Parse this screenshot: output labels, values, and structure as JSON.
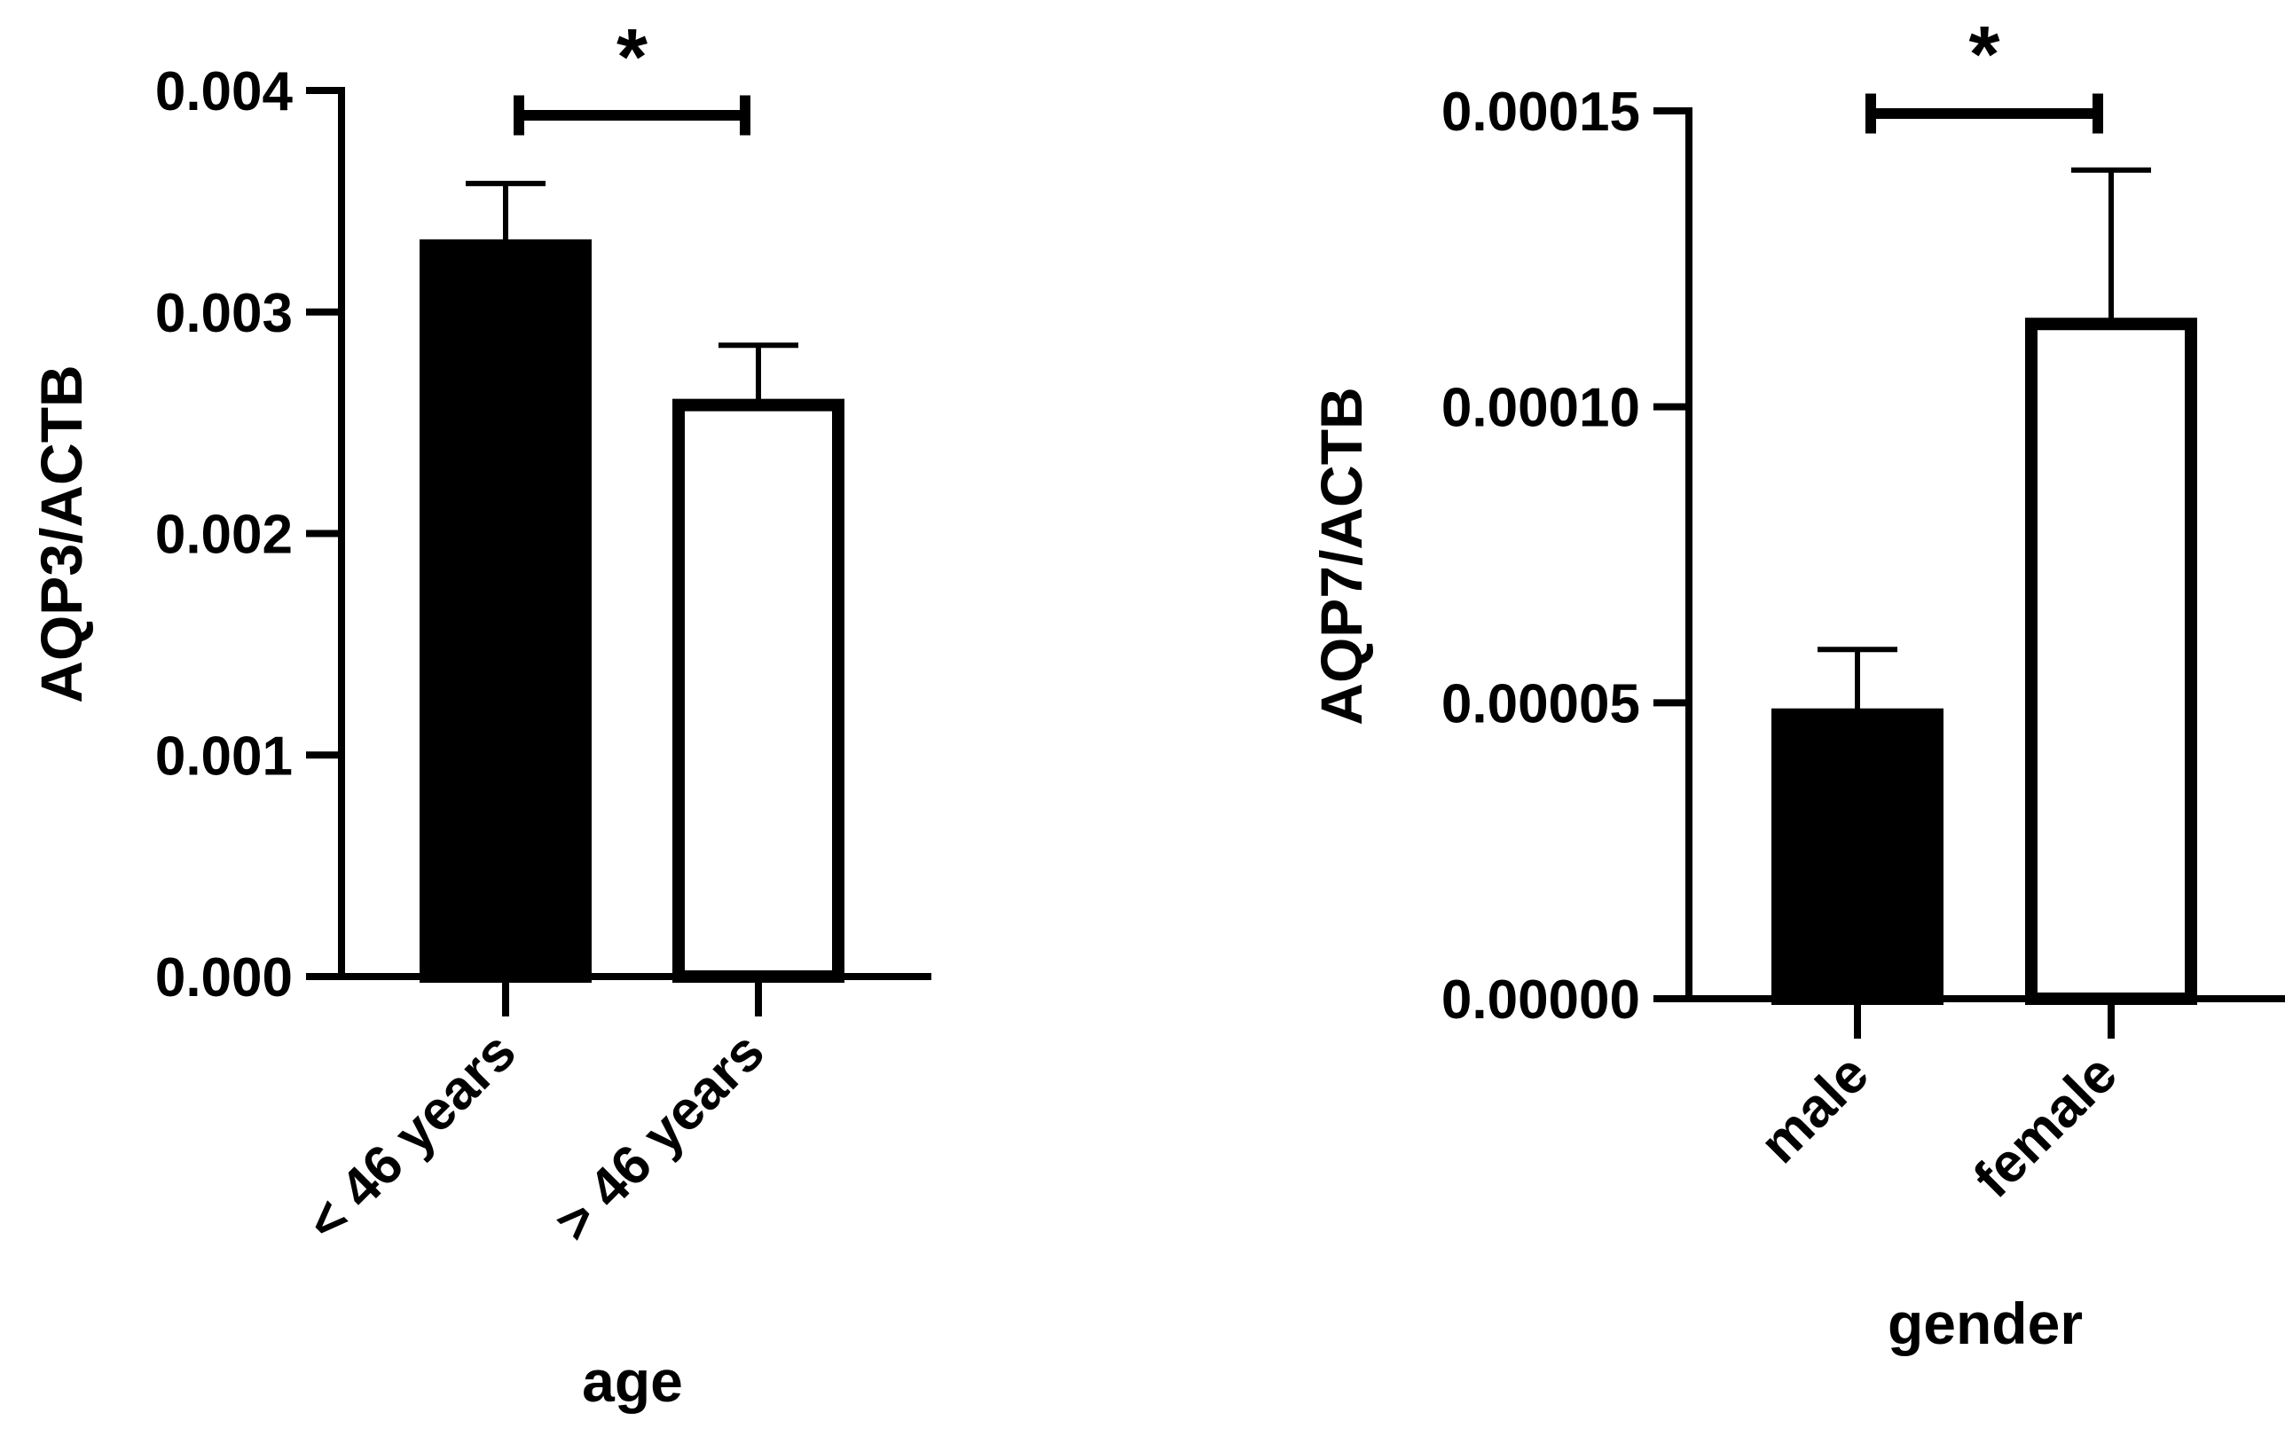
{
  "chart_data": [
    {
      "type": "bar",
      "title": "",
      "xlabel": "age",
      "ylabel": "AQP3/ACTB",
      "categories": [
        "< 46 years",
        "> 46 years"
      ],
      "values": [
        0.0033,
        0.00258
      ],
      "errors": [
        0.00028,
        0.00027
      ],
      "fills": [
        "#000000",
        "#ffffff"
      ],
      "ylim": [
        0,
        0.004
      ],
      "yticks": [
        0,
        0.001,
        0.002,
        0.003,
        0.004
      ],
      "ytick_labels": [
        "0.000",
        "0.001",
        "0.002",
        "0.003",
        "0.004"
      ],
      "significance": {
        "from": 0,
        "to": 1,
        "label": "*"
      }
    },
    {
      "type": "bar",
      "title": "",
      "xlabel": "gender",
      "ylabel": "AQP7/ACTB",
      "categories": [
        "male",
        "female"
      ],
      "values": [
        4.8e-05,
        0.000114
      ],
      "errors": [
        1.1e-05,
        2.6e-05
      ],
      "fills": [
        "#000000",
        "#ffffff"
      ],
      "ylim": [
        0,
        0.00015
      ],
      "yticks": [
        0,
        5e-05,
        0.0001,
        0.00015
      ],
      "ytick_labels": [
        "0.00000",
        "0.00005",
        "0.00010",
        "0.00015"
      ],
      "significance": {
        "from": 0,
        "to": 1,
        "label": "*"
      }
    }
  ]
}
